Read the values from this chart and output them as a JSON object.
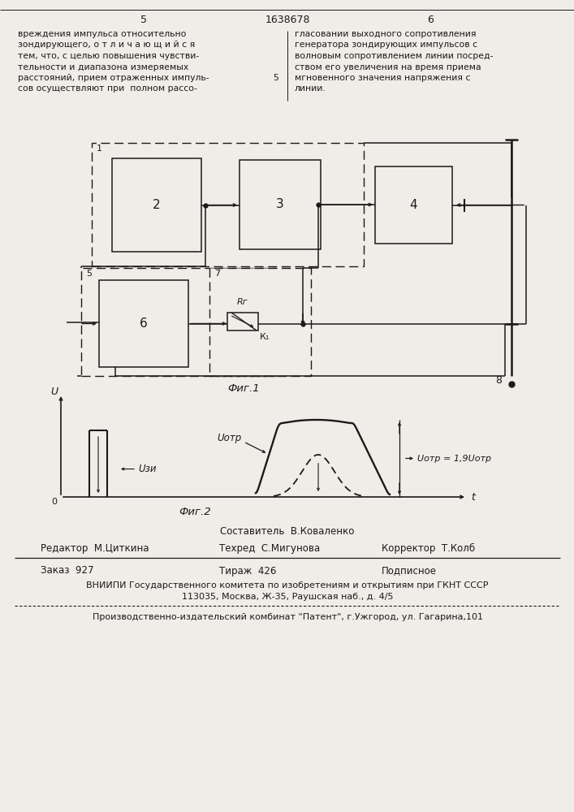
{
  "page_title": "1638678",
  "page_num_left": "5",
  "page_num_right": "6",
  "header_left": "вреждения импульса относительно\nзондирующего, о т л и ч а ю щ и й с я\nтем, что, с целью повышения чувстви-\nтельности и диапазона измеряемых\nрасстояний, прием отраженных импуль-\nсов осуществляют при  полном рассо-",
  "header_right": "гласовании выходного сопротивления\nгенератора зондирующих импульсов с\nволновым сопротивлением линии посред-\nством его увеличения на время приема\nмгновенного значения напряжения с\nлинии.",
  "fig1_label": "Фиг.1",
  "fig2_label": "Фиг.2",
  "footer_composer": "Составитель  В.Коваленко",
  "footer_editor": "Редактор  М.Циткина",
  "footer_techred": "Техред  С.Мигунова",
  "footer_corrector": "Корректор  Т.Колб",
  "footer_order": "Заказ  927",
  "footer_tirazh": "Тираж  426",
  "footer_podpisnoe": "Подписное",
  "footer_vniipи": "ВНИИПИ Государственного комитета по изобретениям и открытиям при ГКНТ СССР",
  "footer_address": "113035, Москва, Ж-35, Раушская наб., д. 4/5",
  "footer_combine": "Производственно-издательский комбинат \"Патент\", г.Ужгород, ул. Гагарина,101",
  "bg_color": "#f0ede8",
  "text_color": "#1a1a1a",
  "line_color": "#1a1a1a"
}
